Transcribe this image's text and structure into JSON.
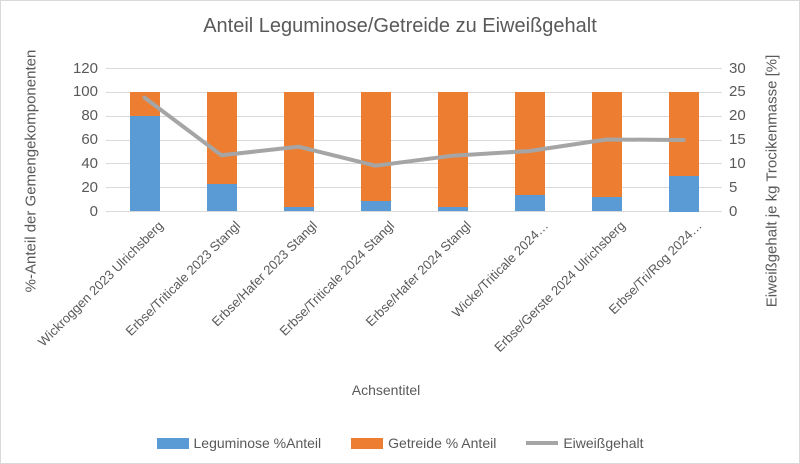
{
  "chart_data": {
    "type": "combo-stacked-bar-line",
    "title": "Anteil Leguminose/Getreide zu Eiweißgehalt",
    "categories": [
      "Wickroggen 2023 Ulrichsberg",
      "Erbse/Triticale 2023 Stangl",
      "Erbse/Hafer 2023 Stangl",
      "Erbse/Triticale 2024 Stangl",
      "Erbse/Hafer 2024 Stangl",
      "Wicke/Triticale 2024…",
      "Erbse/Gerste 2024 Ulrichsberg",
      "Erbse/Tri/Rog 2024…"
    ],
    "series": [
      {
        "name": "Leguminose %Anteil",
        "type": "bar",
        "axis": "left",
        "color": "#5B9BD5",
        "values": [
          80,
          23,
          4,
          9,
          4,
          14,
          12,
          30
        ]
      },
      {
        "name": "Getreide % Anteil",
        "type": "bar",
        "axis": "left",
        "color": "#ED7D31",
        "values": [
          20,
          77,
          96,
          91,
          96,
          86,
          88,
          70
        ]
      },
      {
        "name": "Eiweißgehalt",
        "type": "line",
        "axis": "right",
        "color": "#A5A5A5",
        "values": [
          23.9,
          11.8,
          13.6,
          9.6,
          11.7,
          12.7,
          15.1,
          15
        ]
      }
    ],
    "left_axis": {
      "title": "%-Anteil der Gemengekomponenten",
      "min": 0,
      "max": 120,
      "ticks": [
        0,
        20,
        40,
        60,
        80,
        100,
        120
      ]
    },
    "right_axis": {
      "title": "Eiweißgehalt je kg Trocikenmasse [%]",
      "min": 0,
      "max": 30,
      "ticks": [
        0,
        5,
        10,
        15,
        20,
        25,
        30
      ]
    },
    "x_axis": {
      "title": "Achsentitel"
    },
    "legend": {
      "position": "bottom",
      "entries": [
        "Leguminose %Anteil",
        "Getreide % Anteil",
        "Eiweißgehalt"
      ]
    },
    "grid": true,
    "colors": {
      "gridline": "#D9D9D9",
      "text": "#595959",
      "background": "#FFFFFF",
      "frame_border": "#D9D9D9"
    }
  }
}
